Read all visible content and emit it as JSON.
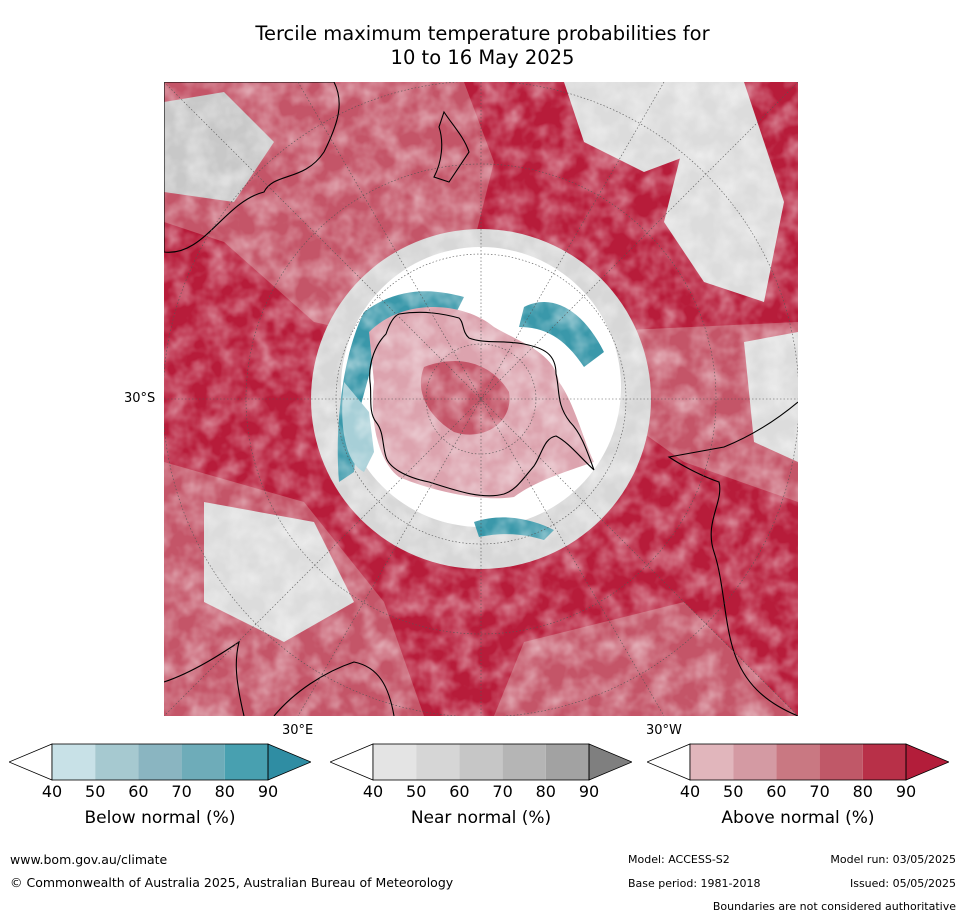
{
  "title": {
    "line1": "Tercile maximum temperature probabilities for",
    "line2": "10 to 16 May 2025"
  },
  "map": {
    "projection": "south-polar stereographic",
    "labels": {
      "lat_30s": "30°S",
      "lon_30e": "30°E",
      "lon_30w": "30°W"
    },
    "colors": {
      "above_strong": "#b71c3a",
      "above_mid": "#c45568",
      "above_light": "#dca3ae",
      "near_light": "#dcdcdc",
      "near_mid": "#b8b8b8",
      "below_strong": "#3a98aa",
      "below_light": "#a7cfd7",
      "land_outline": "#000000"
    }
  },
  "colorbars": [
    {
      "label": "Below normal (%)",
      "ticks": [
        "40",
        "50",
        "60",
        "70",
        "80",
        "90"
      ],
      "colors": [
        "#ffffff",
        "#c8e1e7",
        "#a6c9d0",
        "#8ab5c1",
        "#6eacb9",
        "#48a0b0",
        "#2f8da3"
      ]
    },
    {
      "label": "Near normal (%)",
      "ticks": [
        "40",
        "50",
        "60",
        "70",
        "80",
        "90"
      ],
      "colors": [
        "#ffffff",
        "#e4e4e4",
        "#d6d6d6",
        "#c6c6c6",
        "#b5b5b5",
        "#a2a2a2",
        "#7f7f7f"
      ]
    },
    {
      "label": "Above normal (%)",
      "ticks": [
        "40",
        "50",
        "60",
        "70",
        "80",
        "90"
      ],
      "colors": [
        "#ffffff",
        "#e1b6bc",
        "#d49aa3",
        "#c97882",
        "#c05868",
        "#b83048",
        "#b31d3a"
      ]
    }
  ],
  "footer": {
    "website": "www.bom.gov.au/climate",
    "copyright": "© Commonwealth of Australia 2025, Australian Bureau of Meteorology",
    "model": "Model: ACCESS-S2",
    "model_run": "Model run: 03/05/2025",
    "base_period": "Base period: 1981-2018",
    "issued": "Issued: 05/05/2025",
    "disclaimer": "Boundaries are not considered authoritative"
  }
}
